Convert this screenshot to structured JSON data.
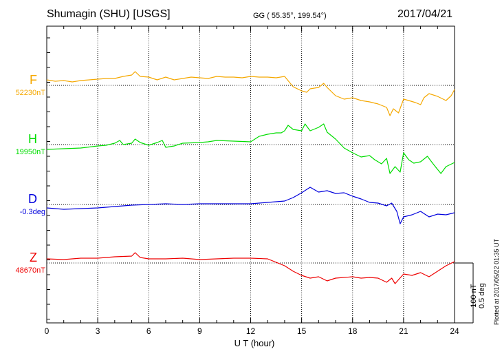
{
  "header": {
    "station": "Shumagin (SHU)  [USGS]",
    "coords": "GG ( 55.35°, 199.54°)",
    "date": "2017/04/21"
  },
  "plotted_note": "Plotted at 2017/05/22 01:35 UT",
  "scale": {
    "line1": "100 nT",
    "line2": "0.5 deg"
  },
  "chart_data": {
    "type": "line",
    "xlabel": "U T (hour)",
    "xlim": [
      0,
      24
    ],
    "xticks": [
      0,
      3,
      6,
      9,
      12,
      15,
      18,
      21,
      24
    ],
    "grid": true,
    "scale_bar": {
      "nT": 100,
      "deg": 0.5
    },
    "series": [
      {
        "name": "F",
        "baseline_label": "52230nT",
        "color": "#f5a800",
        "points": [
          [
            0,
            8
          ],
          [
            0.5,
            6
          ],
          [
            1,
            7
          ],
          [
            1.5,
            5
          ],
          [
            2,
            7
          ],
          [
            2.5,
            8
          ],
          [
            3,
            9
          ],
          [
            3.5,
            10
          ],
          [
            4,
            10
          ],
          [
            4.5,
            13
          ],
          [
            5,
            15
          ],
          [
            5.2,
            20
          ],
          [
            5.5,
            13
          ],
          [
            6,
            12
          ],
          [
            6.5,
            8
          ],
          [
            7,
            12
          ],
          [
            7.5,
            8
          ],
          [
            8,
            10
          ],
          [
            8.5,
            12
          ],
          [
            9,
            11
          ],
          [
            9.5,
            10
          ],
          [
            10,
            13
          ],
          [
            10.5,
            12
          ],
          [
            11,
            12
          ],
          [
            11.5,
            11
          ],
          [
            12,
            13
          ],
          [
            12.5,
            12
          ],
          [
            13,
            12
          ],
          [
            13.5,
            11
          ],
          [
            14,
            13
          ],
          [
            14.3,
            4
          ],
          [
            14.5,
            -2
          ],
          [
            15,
            -8
          ],
          [
            15.3,
            -10
          ],
          [
            15.5,
            -5
          ],
          [
            16,
            -3
          ],
          [
            16.3,
            3
          ],
          [
            16.5,
            -3
          ],
          [
            17,
            -15
          ],
          [
            17.5,
            -20
          ],
          [
            18,
            -18
          ],
          [
            18.5,
            -22
          ],
          [
            19,
            -24
          ],
          [
            19.5,
            -27
          ],
          [
            20,
            -32
          ],
          [
            20.2,
            -44
          ],
          [
            20.4,
            -34
          ],
          [
            20.7,
            -40
          ],
          [
            21,
            -20
          ],
          [
            21.3,
            -22
          ],
          [
            21.7,
            -25
          ],
          [
            22,
            -28
          ],
          [
            22.2,
            -18
          ],
          [
            22.5,
            -12
          ],
          [
            23,
            -16
          ],
          [
            23.5,
            -22
          ],
          [
            23.8,
            -15
          ],
          [
            24,
            -6
          ]
        ]
      },
      {
        "name": "H",
        "baseline_label": "19950nT",
        "color": "#00dd00",
        "points": [
          [
            0,
            -7
          ],
          [
            1,
            -6
          ],
          [
            2,
            -5
          ],
          [
            3,
            -2
          ],
          [
            3.5,
            -1
          ],
          [
            4,
            2
          ],
          [
            4.3,
            6
          ],
          [
            4.5,
            0
          ],
          [
            5,
            2
          ],
          [
            5.2,
            8
          ],
          [
            5.5,
            3
          ],
          [
            6,
            -1
          ],
          [
            6.5,
            3
          ],
          [
            6.8,
            6
          ],
          [
            7,
            -4
          ],
          [
            7.5,
            -2
          ],
          [
            8,
            2
          ],
          [
            9,
            3
          ],
          [
            9.5,
            4
          ],
          [
            10,
            6
          ],
          [
            11,
            5
          ],
          [
            12,
            4
          ],
          [
            12.5,
            12
          ],
          [
            13,
            15
          ],
          [
            13.5,
            17
          ],
          [
            13.8,
            17
          ],
          [
            14,
            20
          ],
          [
            14.2,
            28
          ],
          [
            14.5,
            22
          ],
          [
            15,
            20
          ],
          [
            15.2,
            30
          ],
          [
            15.5,
            20
          ],
          [
            16,
            25
          ],
          [
            16.3,
            30
          ],
          [
            16.5,
            18
          ],
          [
            17,
            8
          ],
          [
            17.5,
            -5
          ],
          [
            18,
            -12
          ],
          [
            18.5,
            -18
          ],
          [
            19,
            -16
          ],
          [
            19.3,
            -22
          ],
          [
            19.7,
            -28
          ],
          [
            20,
            -20
          ],
          [
            20.2,
            -42
          ],
          [
            20.5,
            -32
          ],
          [
            20.8,
            -40
          ],
          [
            21,
            -12
          ],
          [
            21.3,
            -22
          ],
          [
            21.6,
            -27
          ],
          [
            22,
            -25
          ],
          [
            22.4,
            -17
          ],
          [
            22.8,
            -30
          ],
          [
            23.2,
            -42
          ],
          [
            23.5,
            -32
          ],
          [
            24,
            -26
          ]
        ]
      },
      {
        "name": "D",
        "baseline_label": "-0.3deg",
        "color": "#0000dd",
        "points": [
          [
            0,
            -5
          ],
          [
            1,
            -7
          ],
          [
            2,
            -6
          ],
          [
            3,
            -5
          ],
          [
            4,
            -3
          ],
          [
            5,
            -1
          ],
          [
            6,
            0
          ],
          [
            7,
            1
          ],
          [
            8,
            0
          ],
          [
            9,
            1
          ],
          [
            10,
            1
          ],
          [
            11,
            1
          ],
          [
            12,
            1
          ],
          [
            12.5,
            2
          ],
          [
            13,
            3
          ],
          [
            14,
            5
          ],
          [
            14.5,
            10
          ],
          [
            15,
            17
          ],
          [
            15.5,
            25
          ],
          [
            16,
            18
          ],
          [
            16.5,
            20
          ],
          [
            17,
            16
          ],
          [
            17.5,
            17
          ],
          [
            18,
            12
          ],
          [
            18.5,
            8
          ],
          [
            19,
            3
          ],
          [
            19.5,
            2
          ],
          [
            20,
            -2
          ],
          [
            20.3,
            2
          ],
          [
            20.6,
            -10
          ],
          [
            20.8,
            -28
          ],
          [
            21,
            -18
          ],
          [
            21.5,
            -15
          ],
          [
            22,
            -10
          ],
          [
            22.5,
            -18
          ],
          [
            23,
            -14
          ],
          [
            23.5,
            -15
          ],
          [
            24,
            -12
          ]
        ]
      },
      {
        "name": "Z",
        "baseline_label": "48670nT",
        "color": "#ee0000",
        "points": [
          [
            0,
            6
          ],
          [
            1,
            5
          ],
          [
            2,
            7
          ],
          [
            3,
            7
          ],
          [
            4,
            9
          ],
          [
            5,
            10
          ],
          [
            5.2,
            15
          ],
          [
            5.5,
            8
          ],
          [
            6,
            6
          ],
          [
            7,
            6
          ],
          [
            8,
            7
          ],
          [
            9,
            5
          ],
          [
            10,
            6
          ],
          [
            11,
            7
          ],
          [
            12,
            7
          ],
          [
            13,
            6
          ],
          [
            14,
            -4
          ],
          [
            14.5,
            -12
          ],
          [
            15,
            -18
          ],
          [
            15.5,
            -22
          ],
          [
            16,
            -20
          ],
          [
            16.5,
            -26
          ],
          [
            17,
            -22
          ],
          [
            18,
            -20
          ],
          [
            18.5,
            -22
          ],
          [
            19,
            -21
          ],
          [
            19.5,
            -22
          ],
          [
            20,
            -28
          ],
          [
            20.3,
            -22
          ],
          [
            20.5,
            -30
          ],
          [
            21,
            -16
          ],
          [
            21.5,
            -18
          ],
          [
            22,
            -14
          ],
          [
            22.5,
            -20
          ],
          [
            23,
            -12
          ],
          [
            23.5,
            -4
          ],
          [
            24,
            2
          ]
        ]
      }
    ]
  }
}
